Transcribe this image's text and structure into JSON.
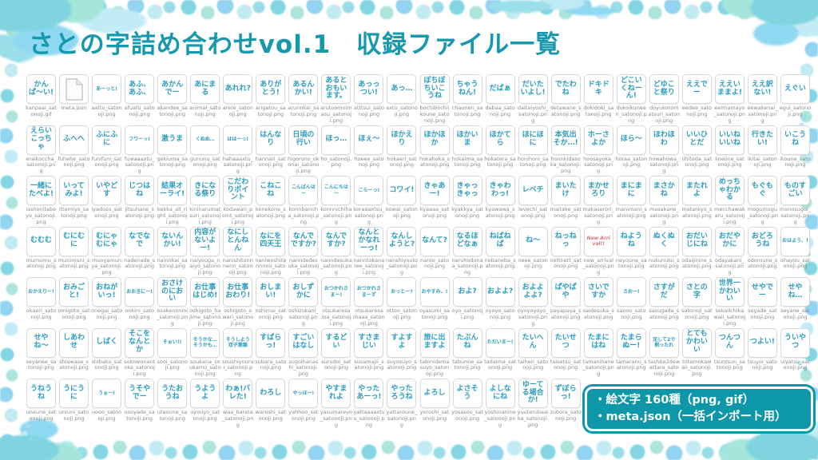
{
  "title": "さとの字詰め合わせvol.1　収録ファイル一覧",
  "info": {
    "line1": "・絵文字 160種（png, gif）",
    "line2": "・meta.json（一括インポート用）"
  },
  "colors": {
    "title_teal": "#1699ad",
    "sticker_text_blue": "#2d9cbe",
    "caption_gray": "#8b8b8b",
    "info_box_teal": "#0d97a9",
    "frame_aqua": "#7ed3e2",
    "new_arrival_accent": "#d4737e"
  },
  "grid": {
    "columns": 24,
    "items": [
      {
        "label": "かんぱ〜い!",
        "file": "kanpaai_satonoji.gif"
      },
      {
        "icon": "file",
        "file": "meta.json"
      },
      {
        "label": "あーっと!",
        "file": "aatto_satonoji.png",
        "small": true
      },
      {
        "label": "あふ、あふ、",
        "file": "afuafu_satonoji.png"
      },
      {
        "label": "あかんでー",
        "file": "akandee_satonoji.png"
      },
      {
        "label": "あにまる",
        "file": "animal_satonoji.png"
      },
      {
        "label": "あれれ?",
        "file": "arere_satonoji.png"
      },
      {
        "label": "ありがとう!",
        "file": "arigatou_satonoji.png"
      },
      {
        "label": "あるんかい!",
        "file": "arunnkai_satonoji.png"
      },
      {
        "label": "あるとおもいます。",
        "file": "arutoomoimasu_satonoji.png"
      },
      {
        "label": "あっっつい!",
        "file": "atttsui_satonoji.png"
      },
      {
        "label": "あっ…",
        "file": "axtu_satonoji.png"
      },
      {
        "label": "ぼちぼちいこうね",
        "file": "bochibochiikoune_satonoji.png"
      },
      {
        "label": "ちゃうねん!",
        "file": "chaunen_satonoji.png"
      },
      {
        "label": "だばぁ",
        "file": "dabaa_satonoji.png"
      },
      {
        "label": "だいたいよし!",
        "file": "daitaiyoshi_satonoji.png"
      },
      {
        "label": "でたわね",
        "file": "detawane_satonoji.png"
      },
      {
        "label": "ドキドキ",
        "file": "dokidoki_satonoji.png"
      },
      {
        "label": "どこいくねーん!",
        "file": "dokoikuneen_satonoji.png"
      },
      {
        "label": "どゆこと祭り",
        "file": "doyukotomatsuri_satonoji.png"
      },
      {
        "label": "ええでー",
        "file": "eedee_satonoji.png"
      },
      {
        "label": "ええいままよ!",
        "file": "eeimamayo_satonoji.png"
      },
      {
        "label": "ええ訳ない!",
        "file": "eewakenai_satonoji.png"
      },
      {
        "label": "えぐい",
        "file": "egui_satonoji.png"
      },
      {
        "label": "えらいこっちゃ",
        "file": "eraikoccha_satonoji.png"
      },
      {
        "label": "ふへへ",
        "file": "fuhehe_satonoji.png"
      },
      {
        "label": "ふにふに",
        "file": "funifuni_satonoji.png"
      },
      {
        "label": "フワーッ!",
        "file": "fuwaaaxtu_satonoji.png",
        "small": true
      },
      {
        "label": "激うま",
        "file": "gekiuma_satonoji.png"
      },
      {
        "label": "くぬぬ…",
        "file": "gununu_satonoji.png",
        "small": true
      },
      {
        "label": "ははーっ!",
        "file": "hahaaaxtu_satonoji.png",
        "small": true
      },
      {
        "label": "はんなり",
        "file": "hannari_satonoji.png"
      },
      {
        "label": "日頃の行い",
        "file": "higorono_okonai_satonoji.png"
      },
      {
        "label": "ほっ…",
        "file": "ho_satonoji.png"
      },
      {
        "label": "ほぇ〜",
        "file": "hoeee_satonoji.png"
      },
      {
        "label": "ほかえり",
        "file": "hokaeri_satonoji.png"
      },
      {
        "label": "ほかほか",
        "file": "hokahoka_satonoji.png"
      },
      {
        "label": "ほかいま",
        "file": "hokaima_satonoji.png"
      },
      {
        "label": "ほかてら",
        "file": "hokatera_satonoji.png"
      },
      {
        "label": "ほにほに",
        "file": "honihoni_satonoji.png"
      },
      {
        "label": "本気出そか…!",
        "file": "honnkidasoka_satonoji.png"
      },
      {
        "label": "ホーさよか",
        "file": "hoosayoka_satonoji.png"
      },
      {
        "label": "ほら〜",
        "file": "horaa_satonoji.png"
      },
      {
        "label": "ほわほわ",
        "file": "howahowa_satonoji.png"
      },
      {
        "label": "いいひとだ",
        "file": "iihitoda_satonoji.png"
      },
      {
        "label": "いいねいいね",
        "file": "iineiine_satonoji.png"
      },
      {
        "label": "行きたい!",
        "file": "ikitai_satonoji.png"
      },
      {
        "label": "いこうね",
        "file": "ikoune_satonoji.png"
      },
      {
        "label": "一緒にたべよ!",
        "file": "isshonitabeyo_satonoji.png"
      },
      {
        "label": "いってみよ!",
        "file": "ittemiyo_satonoji.png"
      },
      {
        "label": "いやどす",
        "file": "iyadosu_satonoji.png"
      },
      {
        "label": "じつはね",
        "file": "jitsuhane_satonoji.png"
      },
      {
        "label": "結果オーライ!",
        "file": "kekka_all_right_satonoji.png"
      },
      {
        "label": "きになる祭り",
        "file": "kininarumatsuri_satonoji.png"
      },
      {
        "label": "こだわりポイント",
        "file": "kodawari_point_satonoji.png"
      },
      {
        "label": "こねこね",
        "file": "konekone_satonoji.png"
      },
      {
        "label": "こんばんはー",
        "file": "konnbannha_satonoji.png",
        "small": true
      },
      {
        "label": "こんにちはー",
        "file": "konnnichiha_satonoji.png",
        "small": true
      },
      {
        "label": "こらーっ!",
        "file": "koraaaxtsu_satonoji.png",
        "small": true
      },
      {
        "label": "コワイ!",
        "file": "kowai_satonoji.png"
      },
      {
        "label": "きゃあー!",
        "file": "kyaaaa_satonoji.png"
      },
      {
        "label": "きゃっきゃっ",
        "file": "kyakkya_satonoji.png"
      },
      {
        "label": "きゃわわっ!",
        "file": "kyawawa_satonoji.png"
      },
      {
        "label": "レベチ",
        "file": "levechi_satonoji.png"
      },
      {
        "label": "まいたけ",
        "file": "maitake_satonoji.png"
      },
      {
        "label": "まかせろり",
        "file": "makaserori_satonoji.png"
      },
      {
        "label": "まにまに",
        "file": "manimani_satonoji.png"
      },
      {
        "label": "まさかね",
        "file": "masakane_satonoji.png"
      },
      {
        "label": "またれよ",
        "file": "matareyo_satonoji.png"
      },
      {
        "label": "めっちゃわかる",
        "file": "mecchawakaru_satonoji.png"
      },
      {
        "label": "もぐもぐ",
        "file": "mogumogu_satonoji.png"
      },
      {
        "label": "ものすごい",
        "file": "monosugoi_satonoji.png"
      },
      {
        "label": "むむむ",
        "file": "mumumu_satonoji.png"
      },
      {
        "label": "むにむに",
        "file": "munimuni_satonoji.png"
      },
      {
        "label": "むにゃむにゃ",
        "file": "munyamunya_satonoji.png"
      },
      {
        "label": "なでなで",
        "file": "nadenade_satonoji.png"
      },
      {
        "label": "ないんかい!",
        "file": "nainnkai_satonoji.png"
      },
      {
        "label": "内容がないよー!",
        "file": "naiyouga_naiyo_satonoji.png"
      },
      {
        "label": "なにしとんねん",
        "file": "nanishitonnnenn_satonoji.png"
      },
      {
        "label": "なにを四天王",
        "file": "naniwoshitennnou_satonoji.png"
      },
      {
        "label": "なんでですか?",
        "file": "nanndedesuka_satonoji.png"
      },
      {
        "label": "なんですか?",
        "file": "nanndesuka_satonoji.png"
      },
      {
        "label": "なんとかなれーっ!",
        "file": "nanntokanaree_satonoji.png"
      },
      {
        "label": "なんしようと?",
        "file": "nanshiyouto_satonoji.png"
      },
      {
        "label": "なんて?",
        "file": "nante_satonoji.png"
      },
      {
        "label": "なるほどなぁ",
        "file": "naruhodonaa_satonoji.png"
      },
      {
        "label": "ねばねば",
        "file": "nebaneba_satonoji.png"
      },
      {
        "label": "ね〜",
        "file": "neee_satonoji.png"
      },
      {
        "label": "ねっねっ",
        "file": "nettnett_satonoji.png"
      },
      {
        "label": "New Arrival!!",
        "file": "new_arrival_satonoji.png",
        "small": true,
        "accent": true
      },
      {
        "label": "ねようね",
        "file": "neyoune_satonoji.png"
      },
      {
        "label": "ぬくぬく",
        "file": "nukunuku_satonoji.png"
      },
      {
        "label": "おだいじにね",
        "file": "odaijinine_satonoji.png"
      },
      {
        "label": "おだやかに",
        "file": "odayakani_satonoji.png"
      },
      {
        "label": "おどろうね",
        "file": "odoroune_satonoji.png"
      },
      {
        "label": "おはよう、!",
        "file": "ohayou_satonoji.png",
        "small": true
      },
      {
        "label": "おかえりー!",
        "file": "okaeri_satonoji.png",
        "small": true
      },
      {
        "label": "おみごと!",
        "file": "omigoto_satonoji.png"
      },
      {
        "label": "おねがいっ!",
        "file": "onegai_satonoji.png"
      },
      {
        "label": "おおきにー!",
        "file": "ookini_satonoji.png",
        "small": true
      },
      {
        "label": "おさけのにおい",
        "file": "osakenonioi_satonoji.png"
      },
      {
        "label": "お仕事はじめ!",
        "file": "oshigoto_hajime_satonoji.png"
      },
      {
        "label": "お仕事おわり!",
        "file": "oshigoto_owari_satonoji.png"
      },
      {
        "label": "おしまい!",
        "file": "oshimai_satonoji.png"
      },
      {
        "label": "おしずかに",
        "file": "oshizukani_satonoji.png"
      },
      {
        "label": "おつかれさまー!",
        "file": "otsukaresama_satonoji.png",
        "small": true
      },
      {
        "label": "おつかれさまーず",
        "file": "otsukaresamaaa_satonoji.png",
        "small": true
      },
      {
        "label": "おっとー?",
        "file": "ottoo_satonoji.png",
        "small": true
      },
      {
        "label": "おやすみ、!",
        "file": "oyasumi_satonoji.png",
        "small": true
      },
      {
        "label": "およ?",
        "file": "oyo_satonoji.png"
      },
      {
        "label": "およよ?",
        "file": "oyoyo_satonoji.png"
      },
      {
        "label": "およよよよ?",
        "file": "oyoyoyoyo_satonoji.png"
      },
      {
        "label": "ぱやぱや",
        "file": "payapaya_satonoji.png"
      },
      {
        "label": "さいですか",
        "file": "saidesuka_satonoji.png"
      },
      {
        "label": "さおー!",
        "file": "saooo_satonoji.png",
        "small": true
      },
      {
        "label": "さすがだ",
        "file": "sasugada_satonoji.png"
      },
      {
        "label": "さとの字",
        "file": "satonoji_satonoji.png"
      },
      {
        "label": "世界一かわいい",
        "file": "sekaiichikawaii_satonoji.png"
      },
      {
        "label": "せやでー",
        "file": "seyade_satonoji.png"
      },
      {
        "label": "せやね…",
        "file": "seyane_satonoji.png"
      },
      {
        "label": "せやね〜",
        "file": "seyanee_satonoji.png"
      },
      {
        "label": "しあわせ",
        "file": "shiawase_satonoji.png"
      },
      {
        "label": "しばく",
        "file": "shibaku_satonoji.png"
      },
      {
        "label": "そこをなんとか",
        "file": "sokowonantoka_satonoji.png"
      },
      {
        "label": "そぉい!!",
        "file": "sooi_satonoji.png",
        "small": true
      },
      {
        "label": "そうかな…そうかも…",
        "file": "soukana_soukamo_satonoji.png",
        "small": true
      },
      {
        "label": "そうしよう双子葉類",
        "file": "soushiyourui_satonoji.png",
        "small": true
      },
      {
        "label": "すばらっ!",
        "file": "subara_satonoji.png"
      },
      {
        "label": "すごいはなし",
        "file": "sugoihanashi_satonoji.png"
      },
      {
        "label": "するどい",
        "file": "surudoi_satonoji.png"
      },
      {
        "label": "すさまじい",
        "file": "susamajii_satonoji.png"
      },
      {
        "label": "すよすよ",
        "file": "suyosuyo_satonoji.png"
      },
      {
        "label": "旅に出ますよ",
        "file": "tabinidemasuyo_satonoji.png"
      },
      {
        "label": "たぶんね",
        "file": "tabunne_satonoji.png"
      },
      {
        "label": "ただいまー!",
        "file": "tadaima_satonoji.png",
        "small": true
      },
      {
        "label": "たいへん",
        "file": "taihen_satonoji.png"
      },
      {
        "label": "たいせつ",
        "file": "taisetsu_satonoji.png"
      },
      {
        "label": "たまにはね",
        "file": "tamanihane_satonoji.png"
      },
      {
        "label": "たまらぬー!",
        "file": "tamaranu_satonoji.png"
      },
      {
        "label": "足して2で割ったれ",
        "file": "tashite2dewattare_satonoji.png",
        "small": true
      },
      {
        "label": "とてもかわいい",
        "file": "totemokawaii_satonoji.png"
      },
      {
        "label": "つんつん",
        "file": "tsuntsun_satonoji.png"
      },
      {
        "label": "つよい!",
        "file": "tsuyoi_satonoji.png"
      },
      {
        "label": "ういやつ",
        "file": "uiyatsu_satonoji.png"
      },
      {
        "label": "うねうね",
        "file": "uneune_satonoji.png"
      },
      {
        "label": "うにうに",
        "file": "uniuni_satonoji.png"
      },
      {
        "label": "うぉー!",
        "file": "uooo_satonoji.png",
        "small": true
      },
      {
        "label": "うそやでー",
        "file": "usoyade_satonoji.png"
      },
      {
        "label": "うたおうね",
        "file": "utaoune_satonoji.png"
      },
      {
        "label": "うようよ",
        "file": "uyouyo_satonoji.png"
      },
      {
        "label": "わぁ!バレた!",
        "file": "waa_bareta_satonoji.png"
      },
      {
        "label": "わろし",
        "file": "waroshi_satonoji.png"
      },
      {
        "label": "やっほー!",
        "file": "yahhoo_satonoji.png",
        "small": true
      },
      {
        "label": "やすまれよ",
        "file": "yasumareyo_satonoji.png"
      },
      {
        "label": "やったあーっ!",
        "file": "yattaaaaxtsu_satonoji.png"
      },
      {
        "label": "やったろうね",
        "file": "yattaroune_satonoji.png"
      },
      {
        "label": "よろし",
        "file": "yoroshi_satonoji.png"
      },
      {
        "label": "よさそう",
        "file": "yosasou_satonoji.png"
      },
      {
        "label": "よしなにね",
        "file": "yoshinanine_satonoji.png"
      },
      {
        "label": "ゆーてる場合か!",
        "file": "yuuterubaaika_satonoji.png"
      },
      {
        "label": "ずぼらっ!",
        "file": "zubora_satonoji.png"
      }
    ]
  }
}
